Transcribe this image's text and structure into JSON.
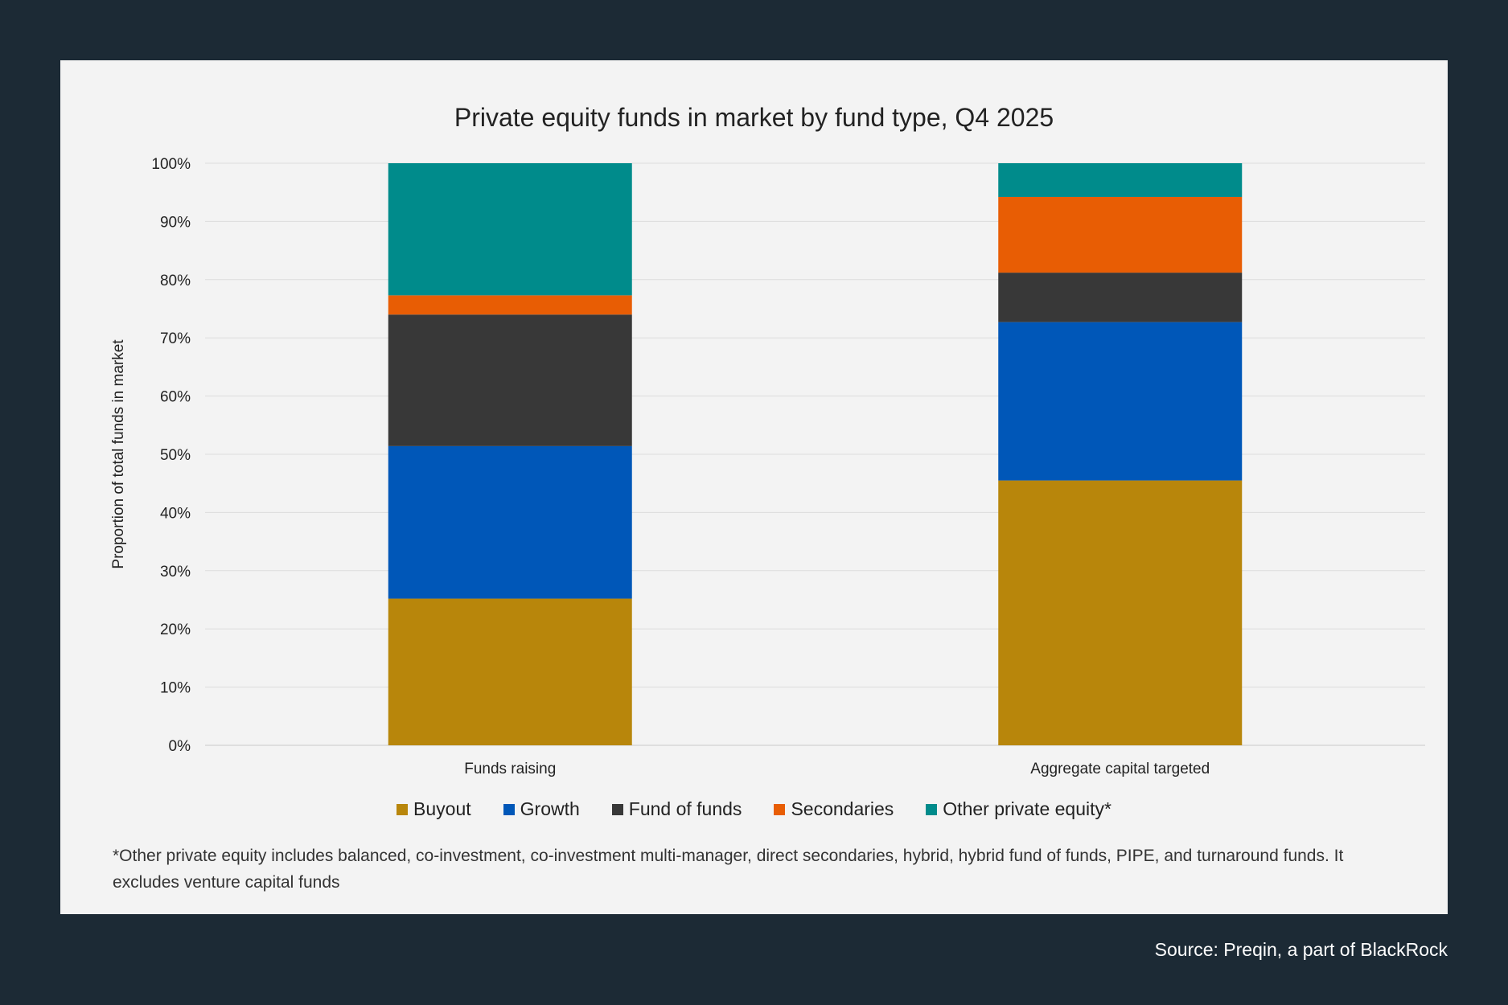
{
  "footnote": "*Other private equity includes balanced, co-investment, co-investment multi-manager, direct secondaries, hybrid, hybrid fund of funds, PIPE, and turnaround funds. It excludes venture capital funds",
  "source": "Source: Preqin, a part of BlackRock",
  "chart_data": {
    "type": "bar",
    "stacked": true,
    "title": "Private equity funds in market by fund type, Q4 2025",
    "xlabel": "",
    "ylabel": "Proportion of total funds in market",
    "ylim": [
      0,
      100
    ],
    "yticks": [
      "0%",
      "10%",
      "20%",
      "30%",
      "40%",
      "50%",
      "60%",
      "70%",
      "80%",
      "90%",
      "100%"
    ],
    "categories": [
      "Funds raising",
      "Aggregate capital targeted"
    ],
    "series": [
      {
        "name": "Buyout",
        "color": "#b8860b",
        "values": [
          25.2,
          45.5
        ]
      },
      {
        "name": "Growth",
        "color": "#0057b8",
        "values": [
          26.2,
          27.2
        ]
      },
      {
        "name": "Fund of funds",
        "color": "#383838",
        "values": [
          22.6,
          8.5
        ]
      },
      {
        "name": "Secondaries",
        "color": "#e85d04",
        "values": [
          3.3,
          13.0
        ]
      },
      {
        "name": "Other private equity*",
        "color": "#008b8b",
        "values": [
          22.7,
          5.8
        ]
      }
    ],
    "grid": true,
    "legend_position": "bottom"
  }
}
